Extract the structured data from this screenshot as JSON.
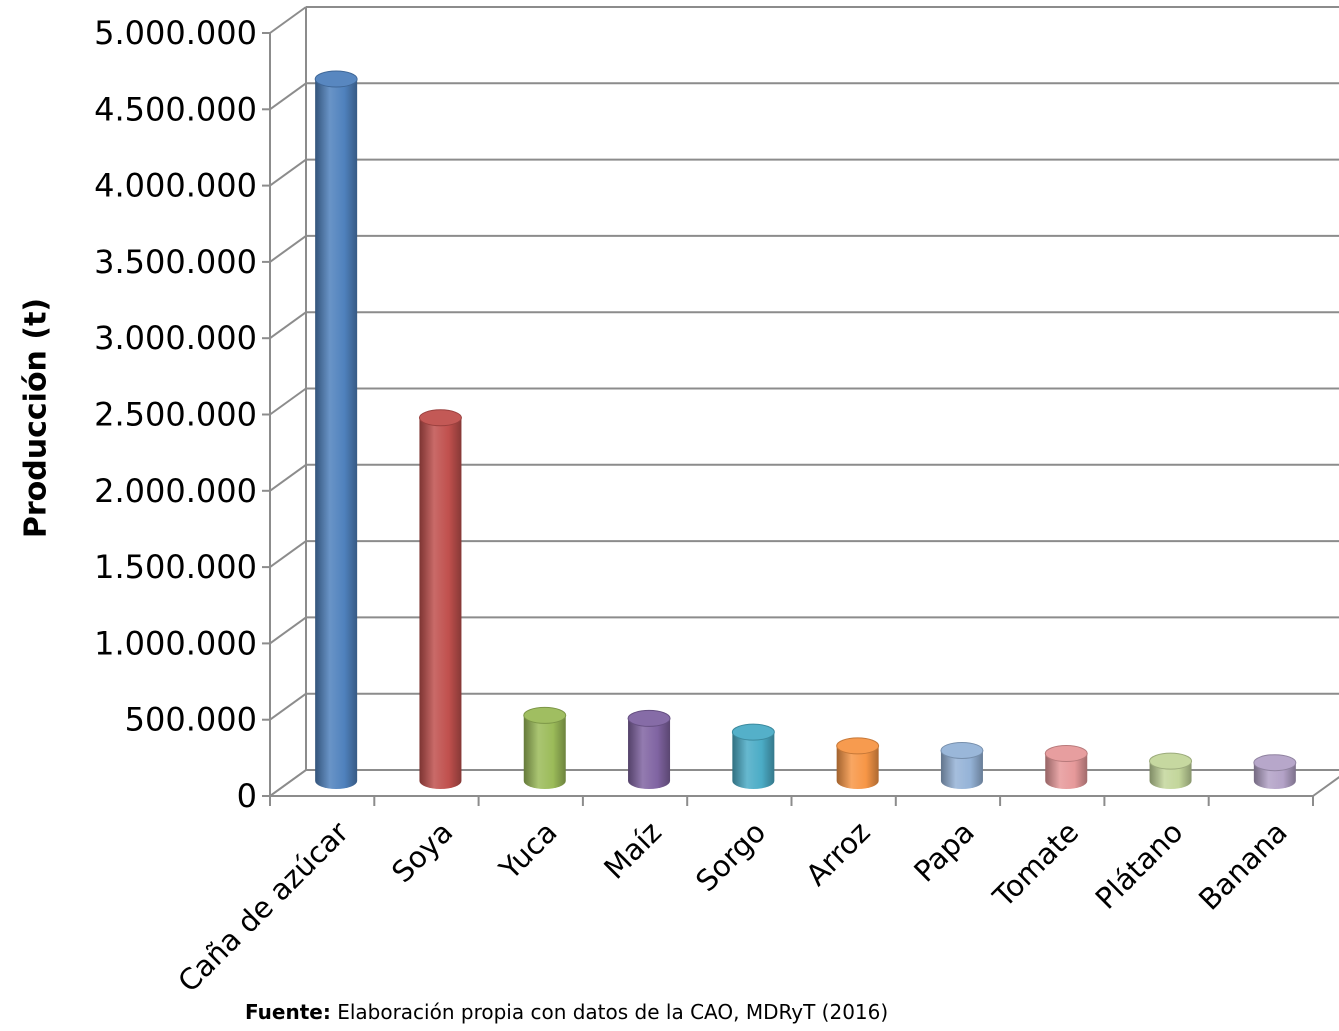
{
  "chart_data": {
    "type": "bar",
    "title": "",
    "xlabel": "",
    "ylabel": "Producción (t)",
    "ylim": [
      0,
      5000000
    ],
    "yticks": [
      0,
      500000,
      1000000,
      1500000,
      2000000,
      2500000,
      3000000,
      3500000,
      4000000,
      4500000,
      5000000
    ],
    "ytick_labels": [
      "0",
      "500.000",
      "1.000.000",
      "1.500.000",
      "2.000.000",
      "2.500.000",
      "3.000.000",
      "3.500.000",
      "4.000.000",
      "4.500.000",
      "5.000.000"
    ],
    "grid": true,
    "legend": "none",
    "style": "3d-cylinder",
    "categories": [
      "Caña de azúcar",
      "Soya",
      "Yuca",
      "Maíz",
      "Sorgo",
      "Arroz",
      "Papa",
      "Tomate",
      "Plátano",
      "Banana"
    ],
    "values": [
      4600000,
      2380000,
      430000,
      410000,
      320000,
      230000,
      200000,
      180000,
      130000,
      120000
    ],
    "colors": [
      "#4f81bd",
      "#c0504d",
      "#9bbb59",
      "#8064a2",
      "#4bacc6",
      "#f79646",
      "#95b3d7",
      "#e6999a",
      "#c3d69b",
      "#b3a2c7"
    ]
  },
  "source_label": "Fuente:",
  "source_text": " Elaboración propia con datos de la CAO, MDRyT (2016)"
}
